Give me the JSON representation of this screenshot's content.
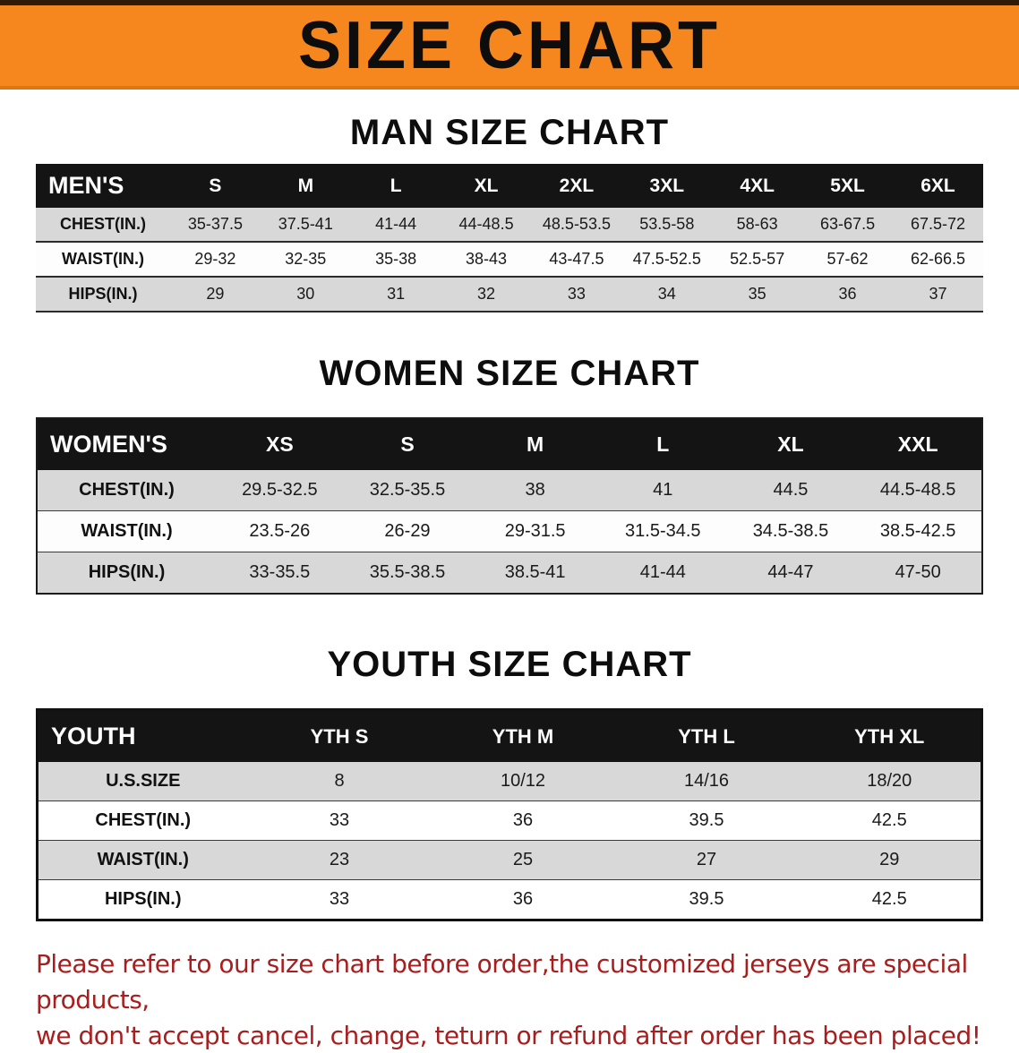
{
  "banner": {
    "title": "SIZE CHART",
    "bg_color": "#f6871f",
    "text_color": "#0d0d0d"
  },
  "sections": [
    {
      "heading": "MAN SIZE CHART",
      "table": {
        "header": [
          "MEN'S",
          "S",
          "M",
          "L",
          "XL",
          "2XL",
          "3XL",
          "4XL",
          "5XL",
          "6XL"
        ],
        "rows": [
          [
            "CHEST(IN.)",
            "35-37.5",
            "37.5-41",
            "41-44",
            "44-48.5",
            "48.5-53.5",
            "53.5-58",
            "58-63",
            "63-67.5",
            "67.5-72"
          ],
          [
            "WAIST(IN.)",
            "29-32",
            "32-35",
            "35-38",
            "38-43",
            "43-47.5",
            "47.5-52.5",
            "52.5-57",
            "57-62",
            "62-66.5"
          ],
          [
            "HIPS(IN.)",
            "29",
            "30",
            "31",
            "32",
            "33",
            "34",
            "35",
            "36",
            "37"
          ]
        ]
      }
    },
    {
      "heading": "WOMEN SIZE CHART",
      "table": {
        "header": [
          "WOMEN'S",
          "XS",
          "S",
          "M",
          "L",
          "XL",
          "XXL"
        ],
        "rows": [
          [
            "CHEST(IN.)",
            "29.5-32.5",
            "32.5-35.5",
            "38",
            "41",
            "44.5",
            "44.5-48.5"
          ],
          [
            "WAIST(IN.)",
            "23.5-26",
            "26-29",
            "29-31.5",
            "31.5-34.5",
            "34.5-38.5",
            "38.5-42.5"
          ],
          [
            "HIPS(IN.)",
            "33-35.5",
            "35.5-38.5",
            "38.5-41",
            "41-44",
            "44-47",
            "47-50"
          ]
        ]
      }
    },
    {
      "heading": "YOUTH SIZE CHART",
      "table": {
        "header": [
          "YOUTH",
          "YTH S",
          "YTH M",
          "YTH L",
          "YTH XL"
        ],
        "rows": [
          [
            "U.S.SIZE",
            "8",
            "10/12",
            "14/16",
            "18/20"
          ],
          [
            "CHEST(IN.)",
            "33",
            "36",
            "39.5",
            "42.5"
          ],
          [
            "WAIST(IN.)",
            "23",
            "25",
            "27",
            "29"
          ],
          [
            "HIPS(IN.)",
            "33",
            "36",
            "39.5",
            "42.5"
          ]
        ]
      }
    }
  ],
  "footer": {
    "line1": "Please refer to our size chart before order,the customized jerseys are special products,",
    "line2": "we don't accept cancel, change, teturn or refund after order has been placed!",
    "text_color": "#a81e1e"
  },
  "colors": {
    "table_header_bg": "#141414",
    "row_stripe": "#d8d8d8"
  }
}
